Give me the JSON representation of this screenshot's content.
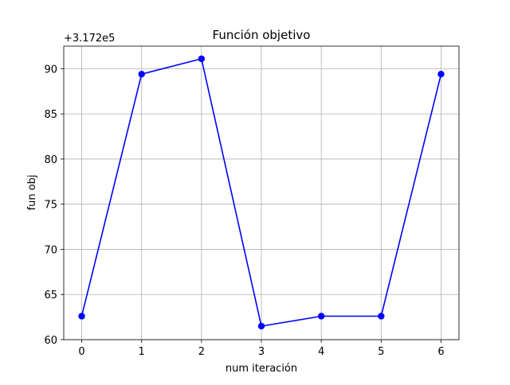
{
  "chart_data": {
    "type": "line",
    "title": "Función objetivo",
    "xlabel": "num iteración",
    "ylabel": "fun obj",
    "offset_label": "+3.172e5",
    "x": [
      0,
      1,
      2,
      3,
      4,
      5,
      6
    ],
    "series": [
      {
        "values": [
          62.6,
          89.4,
          91.1,
          61.5,
          62.6,
          62.6,
          89.4
        ],
        "color": "#0000ff"
      }
    ],
    "xlim": [
      -0.3,
      6.3
    ],
    "ylim": [
      60,
      92.5
    ],
    "xticks": [
      "0",
      "1",
      "2",
      "3",
      "4",
      "5",
      "6"
    ],
    "yticks": [
      "60",
      "65",
      "70",
      "75",
      "80",
      "85",
      "90"
    ],
    "grid": true,
    "legend": "none"
  }
}
